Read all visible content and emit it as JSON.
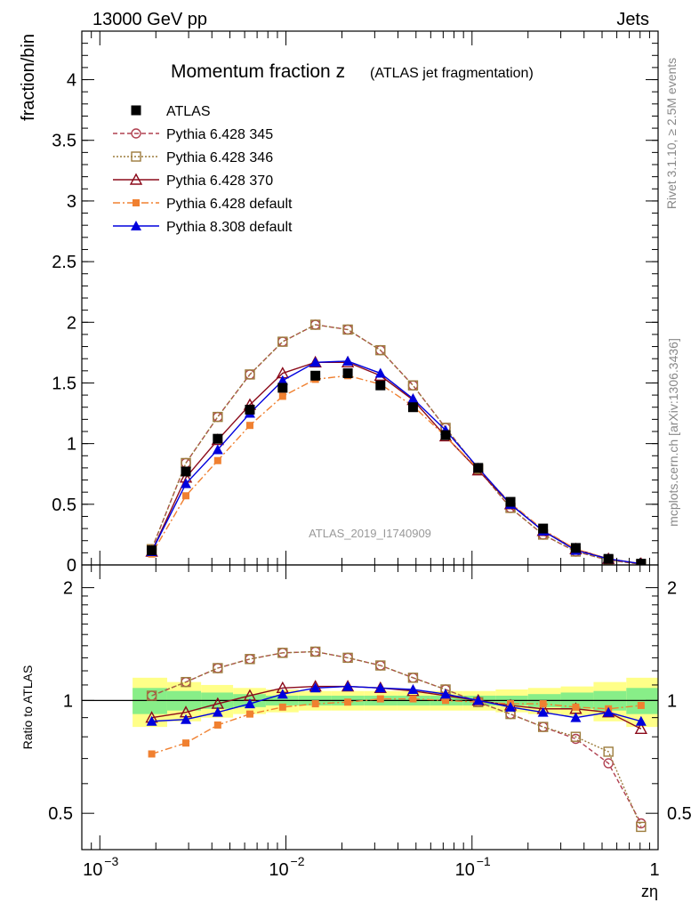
{
  "header": {
    "energy_label": "13000 GeV pp",
    "category_label": "Jets",
    "side_rivet": "Rivet 3.1.10, ≥ 2.5M events",
    "side_mcplots": "mcplots.cern.ch [arXiv:1306.3436]",
    "watermark": "ATLAS_2019_I1740909"
  },
  "chart_data": [
    {
      "type": "line",
      "panel": "main",
      "title_main": "Momentum fraction z",
      "title_sub": "(ATLAS jet fragmentation)",
      "ylabel": "fraction/bin",
      "xscale": "log",
      "xlim": [
        0.0008,
        1
      ],
      "ylim": [
        0,
        4.4
      ],
      "yticks": [
        0,
        0.5,
        1,
        1.5,
        2,
        2.5,
        3,
        3.5,
        4
      ],
      "ytick_labels": [
        "0",
        "0.5",
        "1",
        "1.5",
        "2",
        "2.5",
        "3",
        "3.5",
        "4"
      ],
      "x": [
        0.0019,
        0.0029,
        0.0043,
        0.0064,
        0.0096,
        0.0144,
        0.0215,
        0.0322,
        0.0482,
        0.0721,
        0.108,
        0.161,
        0.241,
        0.361,
        0.541,
        0.81
      ],
      "series": [
        {
          "name": "ATLAS",
          "color": "#000000",
          "marker": "filled-square",
          "values": [
            0.12,
            0.77,
            1.04,
            1.28,
            1.46,
            1.56,
            1.58,
            1.48,
            1.3,
            1.07,
            0.8,
            0.52,
            0.3,
            0.14,
            0.05,
            0.01
          ]
        },
        {
          "name": "Pythia 6.428 345",
          "color": "#b04050",
          "marker": "open-circle",
          "dash": "5,3",
          "values": [
            0.13,
            0.84,
            1.22,
            1.57,
            1.84,
            1.98,
            1.94,
            1.77,
            1.48,
            1.13,
            0.79,
            0.47,
            0.25,
            0.11,
            0.04,
            0.005
          ]
        },
        {
          "name": "Pythia 6.428 346",
          "color": "#9c7b3c",
          "marker": "open-square",
          "dash": "2,2",
          "values": [
            0.13,
            0.84,
            1.22,
            1.57,
            1.84,
            1.98,
            1.94,
            1.77,
            1.48,
            1.13,
            0.79,
            0.47,
            0.25,
            0.11,
            0.04,
            0.005
          ]
        },
        {
          "name": "Pythia 6.428 370",
          "color": "#8b0a1a",
          "marker": "open-triangle",
          "dash": "",
          "values": [
            0.11,
            0.72,
            1.03,
            1.32,
            1.58,
            1.67,
            1.67,
            1.56,
            1.36,
            1.06,
            0.78,
            0.5,
            0.28,
            0.13,
            0.05,
            0.01
          ]
        },
        {
          "name": "Pythia 6.428 default",
          "color": "#f08030",
          "marker": "filled-small-square",
          "dash": "8,3,2,3",
          "values": [
            0.09,
            0.57,
            0.86,
            1.15,
            1.39,
            1.53,
            1.56,
            1.49,
            1.31,
            1.06,
            0.79,
            0.51,
            0.29,
            0.13,
            0.05,
            0.01
          ]
        },
        {
          "name": "Pythia 8.308 default",
          "color": "#0000dd",
          "marker": "filled-triangle",
          "dash": "",
          "values": [
            0.11,
            0.67,
            0.95,
            1.25,
            1.52,
            1.67,
            1.68,
            1.58,
            1.37,
            1.11,
            0.8,
            0.5,
            0.28,
            0.12,
            0.05,
            0.01
          ]
        }
      ],
      "legend_position": "top-left"
    },
    {
      "type": "line",
      "panel": "ratio",
      "ylabel": "Ratio to ATLAS",
      "xlabel": "zη",
      "xscale": "log",
      "xlim": [
        0.0008,
        1
      ],
      "ylim": [
        0.4,
        2.3
      ],
      "yscale": "log",
      "yticks": [
        0.5,
        1,
        2
      ],
      "ytick_labels": [
        "0.5",
        "1",
        "2"
      ],
      "xticks": [
        0.001,
        0.01,
        0.1,
        1
      ],
      "xtick_base": [
        "10",
        "10",
        "10",
        "1"
      ],
      "xtick_exp": [
        "−3",
        "−2",
        "−1",
        ""
      ],
      "x": [
        0.0019,
        0.0029,
        0.0043,
        0.0064,
        0.0096,
        0.0144,
        0.0215,
        0.0322,
        0.0482,
        0.0721,
        0.108,
        0.161,
        0.241,
        0.361,
        0.541,
        0.81
      ],
      "band_edges": [
        0.0015,
        0.0023,
        0.0035,
        0.0052,
        0.0078,
        0.0117,
        0.0176,
        0.0264,
        0.0396,
        0.0594,
        0.089,
        0.134,
        0.2,
        0.3,
        0.45,
        0.675,
        1.0
      ],
      "band_outer": [
        0.15,
        0.12,
        0.1,
        0.08,
        0.07,
        0.06,
        0.06,
        0.06,
        0.06,
        0.06,
        0.06,
        0.07,
        0.08,
        0.09,
        0.12,
        0.15
      ],
      "band_inner": [
        0.08,
        0.06,
        0.05,
        0.04,
        0.03,
        0.03,
        0.03,
        0.03,
        0.03,
        0.03,
        0.03,
        0.03,
        0.04,
        0.05,
        0.06,
        0.08
      ],
      "band_colors": {
        "outer": "#ffff88",
        "inner": "#88ee88"
      },
      "series": [
        {
          "name": "Pythia 6.428 345",
          "color": "#b04050",
          "marker": "open-circle",
          "dash": "5,3",
          "values": [
            1.03,
            1.12,
            1.22,
            1.29,
            1.34,
            1.35,
            1.3,
            1.24,
            1.15,
            1.07,
            0.99,
            0.92,
            0.85,
            0.79,
            0.68,
            0.47
          ]
        },
        {
          "name": "Pythia 6.428 346",
          "color": "#9c7b3c",
          "marker": "open-square",
          "dash": "2,2",
          "values": [
            1.03,
            1.12,
            1.22,
            1.29,
            1.34,
            1.35,
            1.3,
            1.24,
            1.15,
            1.07,
            0.99,
            0.92,
            0.85,
            0.8,
            0.73,
            0.46
          ]
        },
        {
          "name": "Pythia 6.428 370",
          "color": "#8b0a1a",
          "marker": "open-triangle",
          "dash": "",
          "values": [
            0.9,
            0.93,
            0.98,
            1.03,
            1.08,
            1.09,
            1.09,
            1.08,
            1.06,
            1.03,
            1.0,
            0.97,
            0.95,
            0.95,
            0.93,
            0.84
          ]
        },
        {
          "name": "Pythia 6.428 default",
          "color": "#f08030",
          "marker": "filled-small-square",
          "dash": "8,3,2,3",
          "values": [
            0.72,
            0.77,
            0.86,
            0.92,
            0.96,
            0.98,
            0.99,
            1.01,
            1.01,
            1.0,
            0.99,
            0.98,
            0.98,
            0.96,
            0.95,
            0.97
          ]
        },
        {
          "name": "Pythia 8.308 default",
          "color": "#0000dd",
          "marker": "filled-triangle",
          "dash": "",
          "values": [
            0.88,
            0.89,
            0.93,
            0.98,
            1.04,
            1.08,
            1.09,
            1.08,
            1.07,
            1.04,
            1.0,
            0.96,
            0.93,
            0.9,
            0.93,
            0.88
          ]
        }
      ]
    }
  ]
}
